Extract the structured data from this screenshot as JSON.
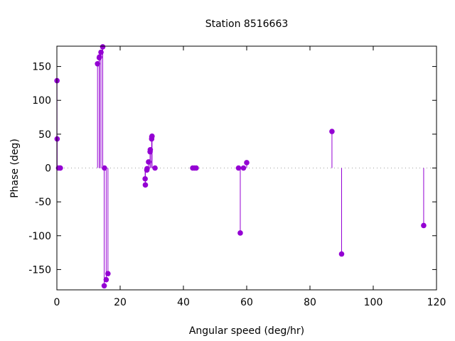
{
  "chart_data": {
    "type": "impulse-scatter",
    "title": "Station 8516663",
    "xlabel": "Angular speed (deg/hr)",
    "ylabel": "Phase (deg)",
    "xlim": [
      0,
      120
    ],
    "ylim": [
      -180,
      180
    ],
    "xticks": [
      0,
      20,
      40,
      60,
      80,
      100,
      120
    ],
    "yticks": [
      -150,
      -100,
      -50,
      0,
      50,
      100,
      150
    ],
    "grid": false,
    "zero_line": "dotted",
    "color": "#9400d3",
    "points": [
      {
        "x": 0.04,
        "y": 129
      },
      {
        "x": 0.08,
        "y": 43
      },
      {
        "x": 0.54,
        "y": 0
      },
      {
        "x": 1.02,
        "y": 0
      },
      {
        "x": 1.1,
        "y": 0
      },
      {
        "x": 12.85,
        "y": 154
      },
      {
        "x": 13.4,
        "y": 163
      },
      {
        "x": 13.47,
        "y": 164
      },
      {
        "x": 13.94,
        "y": 171
      },
      {
        "x": 14.49,
        "y": 179
      },
      {
        "x": 14.96,
        "y": -174
      },
      {
        "x": 15.04,
        "y": 0
      },
      {
        "x": 15.59,
        "y": -165
      },
      {
        "x": 16.14,
        "y": -156
      },
      {
        "x": 27.9,
        "y": -16
      },
      {
        "x": 27.97,
        "y": -25
      },
      {
        "x": 28.44,
        "y": -3
      },
      {
        "x": 28.51,
        "y": -1
      },
      {
        "x": 28.98,
        "y": 9
      },
      {
        "x": 29.46,
        "y": 24
      },
      {
        "x": 29.53,
        "y": 27
      },
      {
        "x": 29.96,
        "y": 43
      },
      {
        "x": 30.0,
        "y": 46
      },
      {
        "x": 30.08,
        "y": 47
      },
      {
        "x": 31.02,
        "y": 0
      },
      {
        "x": 42.93,
        "y": 0
      },
      {
        "x": 43.48,
        "y": 0
      },
      {
        "x": 44.03,
        "y": 0
      },
      {
        "x": 57.42,
        "y": 0
      },
      {
        "x": 57.97,
        "y": -96
      },
      {
        "x": 58.98,
        "y": 0
      },
      {
        "x": 60.0,
        "y": 8
      },
      {
        "x": 86.95,
        "y": 54
      },
      {
        "x": 90.0,
        "y": -127
      },
      {
        "x": 115.94,
        "y": -85
      }
    ]
  }
}
